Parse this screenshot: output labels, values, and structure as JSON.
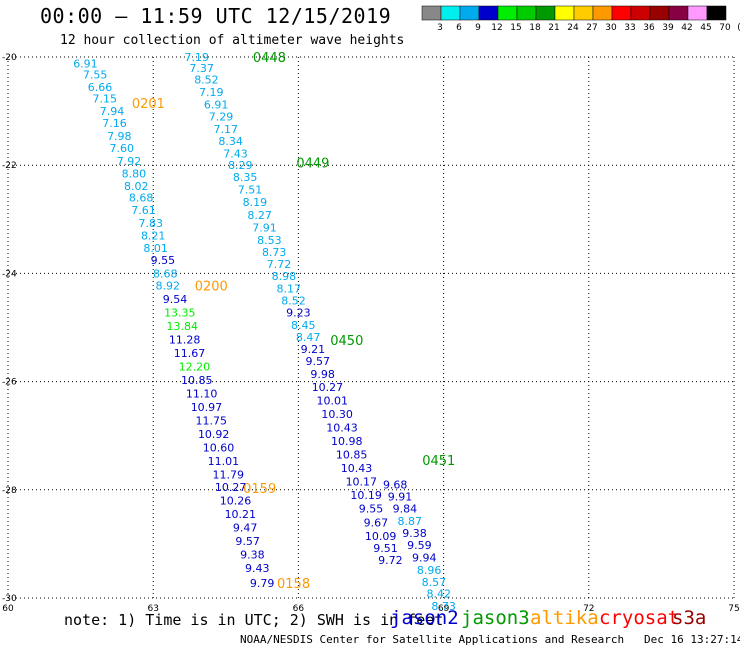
{
  "title": "00:00 – 11:59 UTC 12/15/2019",
  "subtitle": "12 hour collection of altimeter wave heights",
  "note": "note: 1) Time is in UTC; 2) SWH is in feet",
  "credit": "NOAA/NESDIS Center for Satellite Applications and Research",
  "timestamp": "Dec 16 13:27:14 UTC 2019",
  "satellites": [
    {
      "name": "jason2",
      "color": "#0000cc"
    },
    {
      "name": "jason3",
      "color": "#009900"
    },
    {
      "name": "altika",
      "color": "#ff9900"
    },
    {
      "name": "cryosat",
      "color": "#ff0000"
    },
    {
      "name": "s3a",
      "color": "#990000"
    }
  ],
  "legend": {
    "labels": [
      "3",
      "6",
      "9",
      "12",
      "15",
      "18",
      "21",
      "24",
      "27",
      "30",
      "33",
      "36",
      "39",
      "42",
      "45",
      "70",
      "(ft)"
    ],
    "colors": [
      "#888888",
      "#00eeee",
      "#00aaee",
      "#0000cc",
      "#00ee00",
      "#00cc00",
      "#009900",
      "#ffff00",
      "#ffcc00",
      "#ff9900",
      "#ff0000",
      "#cc0000",
      "#990000",
      "#880044",
      "#ff99ff",
      "#000000"
    ]
  },
  "chart_data": {
    "type": "scatter",
    "xlim": [
      60,
      75
    ],
    "ylim": [
      -30,
      -20
    ],
    "xticks": [
      "60",
      "63",
      "66",
      "69",
      "72",
      "75"
    ],
    "yticks": [
      "-20",
      "-22",
      "-24",
      "-26",
      "-28",
      "-30"
    ],
    "grid": true,
    "labels_series": [
      {
        "name": "pass-0201-0200-0159-0158",
        "points": [
          {
            "x": 61.6,
            "y": -20.12,
            "v": "6.91",
            "c": "#00aaee"
          },
          {
            "x": 61.8,
            "y": -20.32,
            "v": "7.55",
            "c": "#00aaee"
          },
          {
            "x": 61.9,
            "y": -20.55,
            "v": "6.66",
            "c": "#00aaee"
          },
          {
            "x": 62.0,
            "y": -20.77,
            "v": "7.15",
            "c": "#00aaee"
          },
          {
            "x": 62.15,
            "y": -21.0,
            "v": "7.94",
            "c": "#00aaee"
          },
          {
            "x": 62.2,
            "y": -21.22,
            "v": "7.16",
            "c": "#00aaee"
          },
          {
            "x": 62.3,
            "y": -21.46,
            "v": "7.98",
            "c": "#00aaee"
          },
          {
            "x": 62.35,
            "y": -21.68,
            "v": "7.60",
            "c": "#00aaee"
          },
          {
            "x": 62.5,
            "y": -21.92,
            "v": "7.92",
            "c": "#00aaee"
          },
          {
            "x": 62.6,
            "y": -22.15,
            "v": "8.80",
            "c": "#00aaee"
          },
          {
            "x": 62.65,
            "y": -22.38,
            "v": "8.02",
            "c": "#00aaee"
          },
          {
            "x": 62.75,
            "y": -22.6,
            "v": "8.68",
            "c": "#00aaee"
          },
          {
            "x": 62.8,
            "y": -22.83,
            "v": "7.61",
            "c": "#00aaee"
          },
          {
            "x": 62.95,
            "y": -23.07,
            "v": "7.83",
            "c": "#00aaee"
          },
          {
            "x": 63.0,
            "y": -23.3,
            "v": "8.21",
            "c": "#00aaee"
          },
          {
            "x": 63.05,
            "y": -23.53,
            "v": "8.01",
            "c": "#00aaee"
          },
          {
            "x": 63.2,
            "y": -23.75,
            "v": "9.55",
            "c": "#0000cc"
          },
          {
            "x": 63.25,
            "y": -24.0,
            "v": "8.68",
            "c": "#00aaee"
          },
          {
            "x": 63.3,
            "y": -24.22,
            "v": "8.92",
            "c": "#00aaee"
          },
          {
            "x": 63.45,
            "y": -24.47,
            "v": "9.54",
            "c": "#0000cc"
          },
          {
            "x": 63.55,
            "y": -24.72,
            "v": "13.35",
            "c": "#00ee00"
          },
          {
            "x": 63.6,
            "y": -24.97,
            "v": "13.84",
            "c": "#00ee00"
          },
          {
            "x": 63.65,
            "y": -25.22,
            "v": "11.28",
            "c": "#0000cc"
          },
          {
            "x": 63.75,
            "y": -25.47,
            "v": "11.67",
            "c": "#0000cc"
          },
          {
            "x": 63.85,
            "y": -25.72,
            "v": "12.20",
            "c": "#00ee00"
          },
          {
            "x": 63.9,
            "y": -25.97,
            "v": "10.85",
            "c": "#0000cc"
          },
          {
            "x": 64.0,
            "y": -26.22,
            "v": "11.10",
            "c": "#0000cc"
          },
          {
            "x": 64.1,
            "y": -26.47,
            "v": "10.97",
            "c": "#0000cc"
          },
          {
            "x": 64.2,
            "y": -26.72,
            "v": "11.75",
            "c": "#0000cc"
          },
          {
            "x": 64.25,
            "y": -26.97,
            "v": "10.92",
            "c": "#0000cc"
          },
          {
            "x": 64.35,
            "y": -27.22,
            "v": "10.60",
            "c": "#0000cc"
          },
          {
            "x": 64.45,
            "y": -27.47,
            "v": "11.01",
            "c": "#0000cc"
          },
          {
            "x": 64.55,
            "y": -27.72,
            "v": "11.79",
            "c": "#0000cc"
          },
          {
            "x": 64.6,
            "y": -27.95,
            "v": "10.27",
            "c": "#0000cc"
          },
          {
            "x": 64.7,
            "y": -28.2,
            "v": "10.26",
            "c": "#0000cc"
          },
          {
            "x": 64.8,
            "y": -28.45,
            "v": "10.21",
            "c": "#0000cc"
          },
          {
            "x": 64.9,
            "y": -28.7,
            "v": "9.47",
            "c": "#0000cc"
          },
          {
            "x": 64.95,
            "y": -28.95,
            "v": "9.57",
            "c": "#0000cc"
          },
          {
            "x": 65.05,
            "y": -29.2,
            "v": "9.38",
            "c": "#0000cc"
          },
          {
            "x": 65.15,
            "y": -29.45,
            "v": "9.43",
            "c": "#0000cc"
          },
          {
            "x": 65.25,
            "y": -29.72,
            "v": "9.79",
            "c": "#0000cc"
          }
        ]
      },
      {
        "name": "pass-0448-0449-0450-0451",
        "points": [
          {
            "x": 63.9,
            "y": -20.0,
            "v": "7.19",
            "c": "#00aaee"
          },
          {
            "x": 64.0,
            "y": -20.2,
            "v": "7.37",
            "c": "#00aaee"
          },
          {
            "x": 64.1,
            "y": -20.42,
            "v": "8.52",
            "c": "#00aaee"
          },
          {
            "x": 64.2,
            "y": -20.65,
            "v": "7.19",
            "c": "#00aaee"
          },
          {
            "x": 64.3,
            "y": -20.88,
            "v": "6.91",
            "c": "#00aaee"
          },
          {
            "x": 64.4,
            "y": -21.1,
            "v": "7.29",
            "c": "#00aaee"
          },
          {
            "x": 64.5,
            "y": -21.33,
            "v": "7.17",
            "c": "#00aaee"
          },
          {
            "x": 64.6,
            "y": -21.55,
            "v": "8.34",
            "c": "#00aaee"
          },
          {
            "x": 64.7,
            "y": -21.78,
            "v": "7.43",
            "c": "#00aaee"
          },
          {
            "x": 64.8,
            "y": -22.0,
            "v": "8.29",
            "c": "#00aaee"
          },
          {
            "x": 64.9,
            "y": -22.22,
            "v": "8.35",
            "c": "#00aaee"
          },
          {
            "x": 65.0,
            "y": -22.45,
            "v": "7.51",
            "c": "#00aaee"
          },
          {
            "x": 65.1,
            "y": -22.68,
            "v": "8.19",
            "c": "#00aaee"
          },
          {
            "x": 65.2,
            "y": -22.92,
            "v": "8.27",
            "c": "#00aaee"
          },
          {
            "x": 65.3,
            "y": -23.15,
            "v": "7.91",
            "c": "#00aaee"
          },
          {
            "x": 65.4,
            "y": -23.38,
            "v": "8.53",
            "c": "#00aaee"
          },
          {
            "x": 65.5,
            "y": -23.6,
            "v": "8.73",
            "c": "#00aaee"
          },
          {
            "x": 65.6,
            "y": -23.83,
            "v": "7.72",
            "c": "#00aaee"
          },
          {
            "x": 65.7,
            "y": -24.05,
            "v": "8.98",
            "c": "#00aaee"
          },
          {
            "x": 65.8,
            "y": -24.28,
            "v": "8.17",
            "c": "#00aaee"
          },
          {
            "x": 65.9,
            "y": -24.5,
            "v": "8.52",
            "c": "#00aaee"
          },
          {
            "x": 66.0,
            "y": -24.72,
            "v": "9.23",
            "c": "#0000cc"
          },
          {
            "x": 66.1,
            "y": -24.95,
            "v": "8.45",
            "c": "#00aaee"
          },
          {
            "x": 66.2,
            "y": -25.18,
            "v": "8.47",
            "c": "#00aaee"
          },
          {
            "x": 66.3,
            "y": -25.4,
            "v": "9.21",
            "c": "#0000cc"
          },
          {
            "x": 66.4,
            "y": -25.62,
            "v": "9.57",
            "c": "#0000cc"
          },
          {
            "x": 66.5,
            "y": -25.86,
            "v": "9.98",
            "c": "#0000cc"
          },
          {
            "x": 66.6,
            "y": -26.1,
            "v": "10.27",
            "c": "#0000cc"
          },
          {
            "x": 66.7,
            "y": -26.35,
            "v": "10.01",
            "c": "#0000cc"
          },
          {
            "x": 66.8,
            "y": -26.6,
            "v": "10.30",
            "c": "#0000cc"
          },
          {
            "x": 66.9,
            "y": -26.85,
            "v": "10.43",
            "c": "#0000cc"
          },
          {
            "x": 67.0,
            "y": -27.1,
            "v": "10.98",
            "c": "#0000cc"
          },
          {
            "x": 67.1,
            "y": -27.35,
            "v": "10.85",
            "c": "#0000cc"
          },
          {
            "x": 67.2,
            "y": -27.6,
            "v": "10.43",
            "c": "#0000cc"
          },
          {
            "x": 67.3,
            "y": -27.85,
            "v": "10.17",
            "c": "#0000cc"
          },
          {
            "x": 67.4,
            "y": -28.1,
            "v": "10.19",
            "c": "#0000cc"
          },
          {
            "x": 67.5,
            "y": -28.35,
            "v": "9.55",
            "c": "#0000cc"
          },
          {
            "x": 67.6,
            "y": -28.6,
            "v": "9.67",
            "c": "#0000cc"
          },
          {
            "x": 67.7,
            "y": -28.85,
            "v": "10.09",
            "c": "#0000cc"
          },
          {
            "x": 67.8,
            "y": -29.08,
            "v": "9.51",
            "c": "#0000cc"
          },
          {
            "x": 67.9,
            "y": -29.3,
            "v": "9.72",
            "c": "#0000cc"
          },
          {
            "x": 68.0,
            "y": -27.9,
            "v": "9.68",
            "c": "#0000cc"
          },
          {
            "x": 68.1,
            "y": -28.12,
            "v": "9.91",
            "c": "#0000cc"
          },
          {
            "x": 68.2,
            "y": -28.35,
            "v": "9.84",
            "c": "#0000cc"
          },
          {
            "x": 68.3,
            "y": -28.58,
            "v": "8.87",
            "c": "#00aaee"
          },
          {
            "x": 68.4,
            "y": -28.8,
            "v": "9.38",
            "c": "#0000cc"
          },
          {
            "x": 68.5,
            "y": -29.02,
            "v": "9.59",
            "c": "#0000cc"
          },
          {
            "x": 68.6,
            "y": -29.25,
            "v": "9.94",
            "c": "#0000cc"
          },
          {
            "x": 68.7,
            "y": -29.48,
            "v": "8.96",
            "c": "#00aaee"
          },
          {
            "x": 68.8,
            "y": -29.7,
            "v": "8.57",
            "c": "#00aaee"
          },
          {
            "x": 68.9,
            "y": -29.92,
            "v": "8.42",
            "c": "#00aaee"
          },
          {
            "x": 69.0,
            "y": -30.15,
            "v": "8.73",
            "c": "#00aaee"
          }
        ]
      }
    ],
    "pass_labels": [
      {
        "text": "0448",
        "x": 65.4,
        "y": -20.0,
        "c": "#009900"
      },
      {
        "text": "0201",
        "x": 62.9,
        "y": -20.85,
        "c": "#ff9900"
      },
      {
        "text": "0449",
        "x": 66.3,
        "y": -21.95,
        "c": "#009900"
      },
      {
        "text": "0200",
        "x": 64.2,
        "y": -24.22,
        "c": "#ff9900"
      },
      {
        "text": "0450",
        "x": 67.0,
        "y": -25.23,
        "c": "#009900"
      },
      {
        "text": "0451",
        "x": 68.9,
        "y": -27.45,
        "c": "#009900"
      },
      {
        "text": "0159",
        "x": 65.2,
        "y": -27.97,
        "c": "#ff9900"
      },
      {
        "text": "0158",
        "x": 65.9,
        "y": -29.72,
        "c": "#ff9900"
      }
    ]
  }
}
